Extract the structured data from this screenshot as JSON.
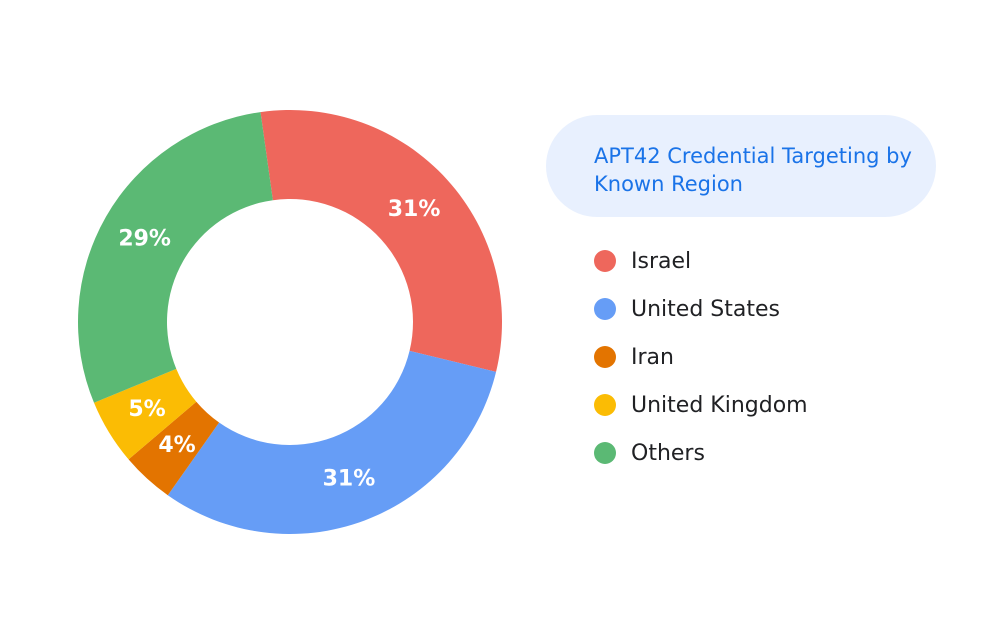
{
  "chart_data": {
    "type": "pie",
    "title": "APT42 Credential Targeting by Known Region",
    "legend_position": "right",
    "slices": [
      {
        "name": "Israel",
        "value": 31,
        "label": "31%",
        "color": "#ee675c"
      },
      {
        "name": "United States",
        "value": 31,
        "label": "31%",
        "color": "#669df6"
      },
      {
        "name": "Iran",
        "value": 4,
        "label": "4%",
        "color": "#e37400"
      },
      {
        "name": "United Kingdom",
        "value": 5,
        "label": "5%",
        "color": "#fbbc04"
      },
      {
        "name": "Others",
        "value": 29,
        "label": "29%",
        "color": "#5bb974"
      }
    ]
  }
}
